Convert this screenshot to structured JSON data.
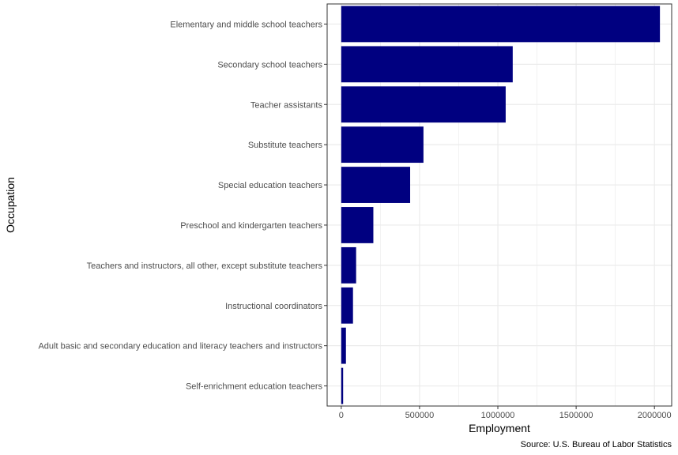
{
  "chart_data": {
    "type": "bar",
    "orientation": "horizontal",
    "categories": [
      "Elementary and middle school teachers",
      "Secondary school teachers",
      "Teacher assistants",
      "Substitute teachers",
      "Special education teachers",
      "Preschool and kindergarten teachers",
      "Teachers and instructors, all other, except substitute teachers",
      "Instructional coordinators",
      "Adult basic and secondary education and literacy teachers and instructors",
      "Self-enrichment education teachers"
    ],
    "values": [
      2035000,
      1095000,
      1050000,
      525000,
      440000,
      205000,
      95000,
      75000,
      30000,
      12000
    ],
    "xlabel": "Employment",
    "ylabel": "Occupation",
    "caption": "Source: U.S. Bureau of Labor Statistics",
    "xlim": [
      -90000,
      2110000
    ],
    "xticks": [
      0,
      500000,
      1000000,
      1500000,
      2000000
    ],
    "xtick_labels": [
      "0",
      "500000",
      "1000000",
      "1500000",
      "2000000"
    ],
    "grid": true,
    "bar_color": "#000080",
    "grid_color": "#ebebeb",
    "panel_border_color": "#333333"
  }
}
